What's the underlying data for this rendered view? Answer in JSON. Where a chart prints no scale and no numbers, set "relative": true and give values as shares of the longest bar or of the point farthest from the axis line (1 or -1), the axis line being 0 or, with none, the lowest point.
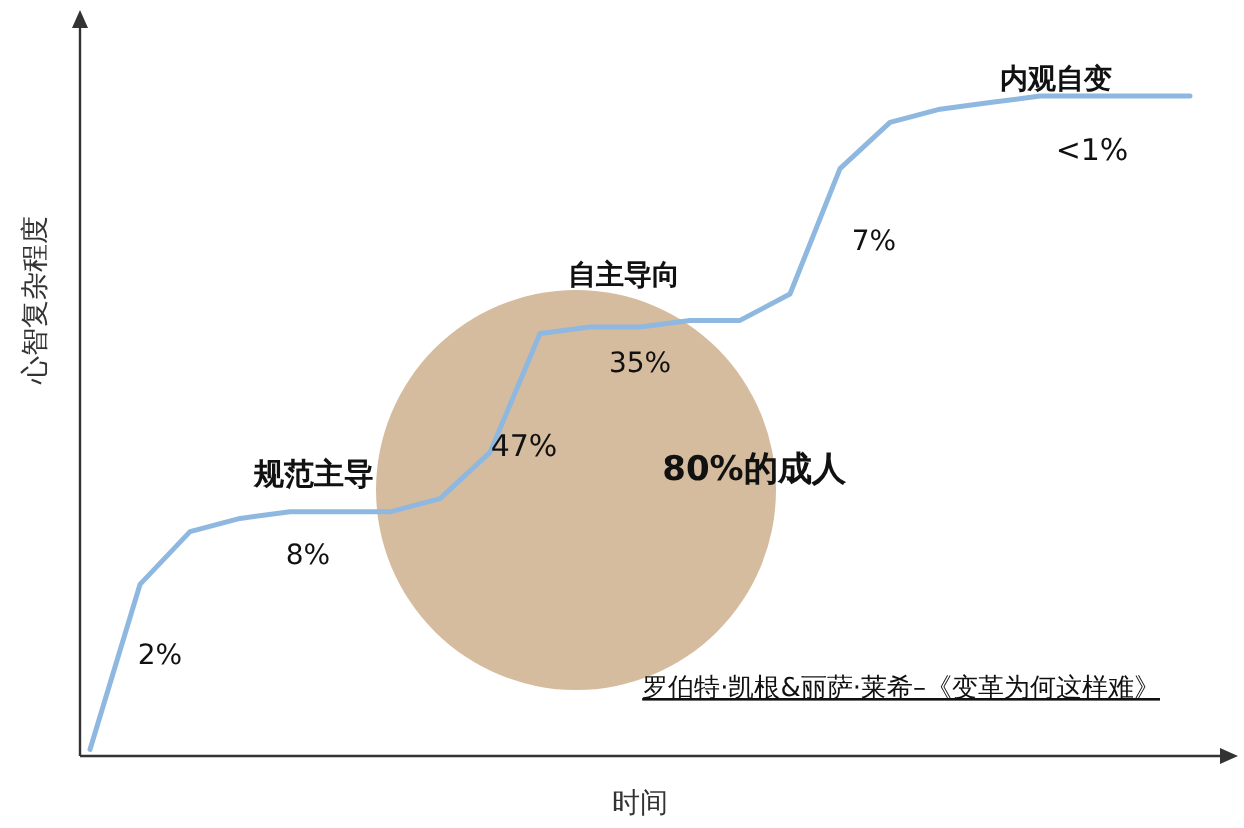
{
  "chart_data": {
    "type": "line",
    "relative": true,
    "xlabel": "时间",
    "ylabel": "心智复杂程度",
    "categories": [
      null,
      null,
      null,
      null,
      null,
      null,
      null,
      null,
      null,
      null,
      null,
      null,
      null,
      null,
      null,
      null,
      null,
      null,
      null,
      null,
      null,
      null,
      null
    ],
    "series": [
      {
        "color": "#8fb8e0",
        "values": [
          0.01,
          0.26,
          0.34,
          0.36,
          0.37,
          0.37,
          0.37,
          0.39,
          0.46,
          0.64,
          0.65,
          0.65,
          0.66,
          0.66,
          0.7,
          0.89,
          0.96,
          0.98,
          0.99,
          1.0,
          1.0,
          1.0,
          1.0
        ]
      }
    ],
    "annotations": [
      "2%",
      "规范主导",
      "8%",
      "47%",
      "自主导向",
      "35%",
      "80%的成人",
      "7%",
      "内观自变",
      "<1%",
      "罗伯特·凯根&丽萨·莱希–《变革为何这样难》"
    ],
    "grid": false
  }
}
